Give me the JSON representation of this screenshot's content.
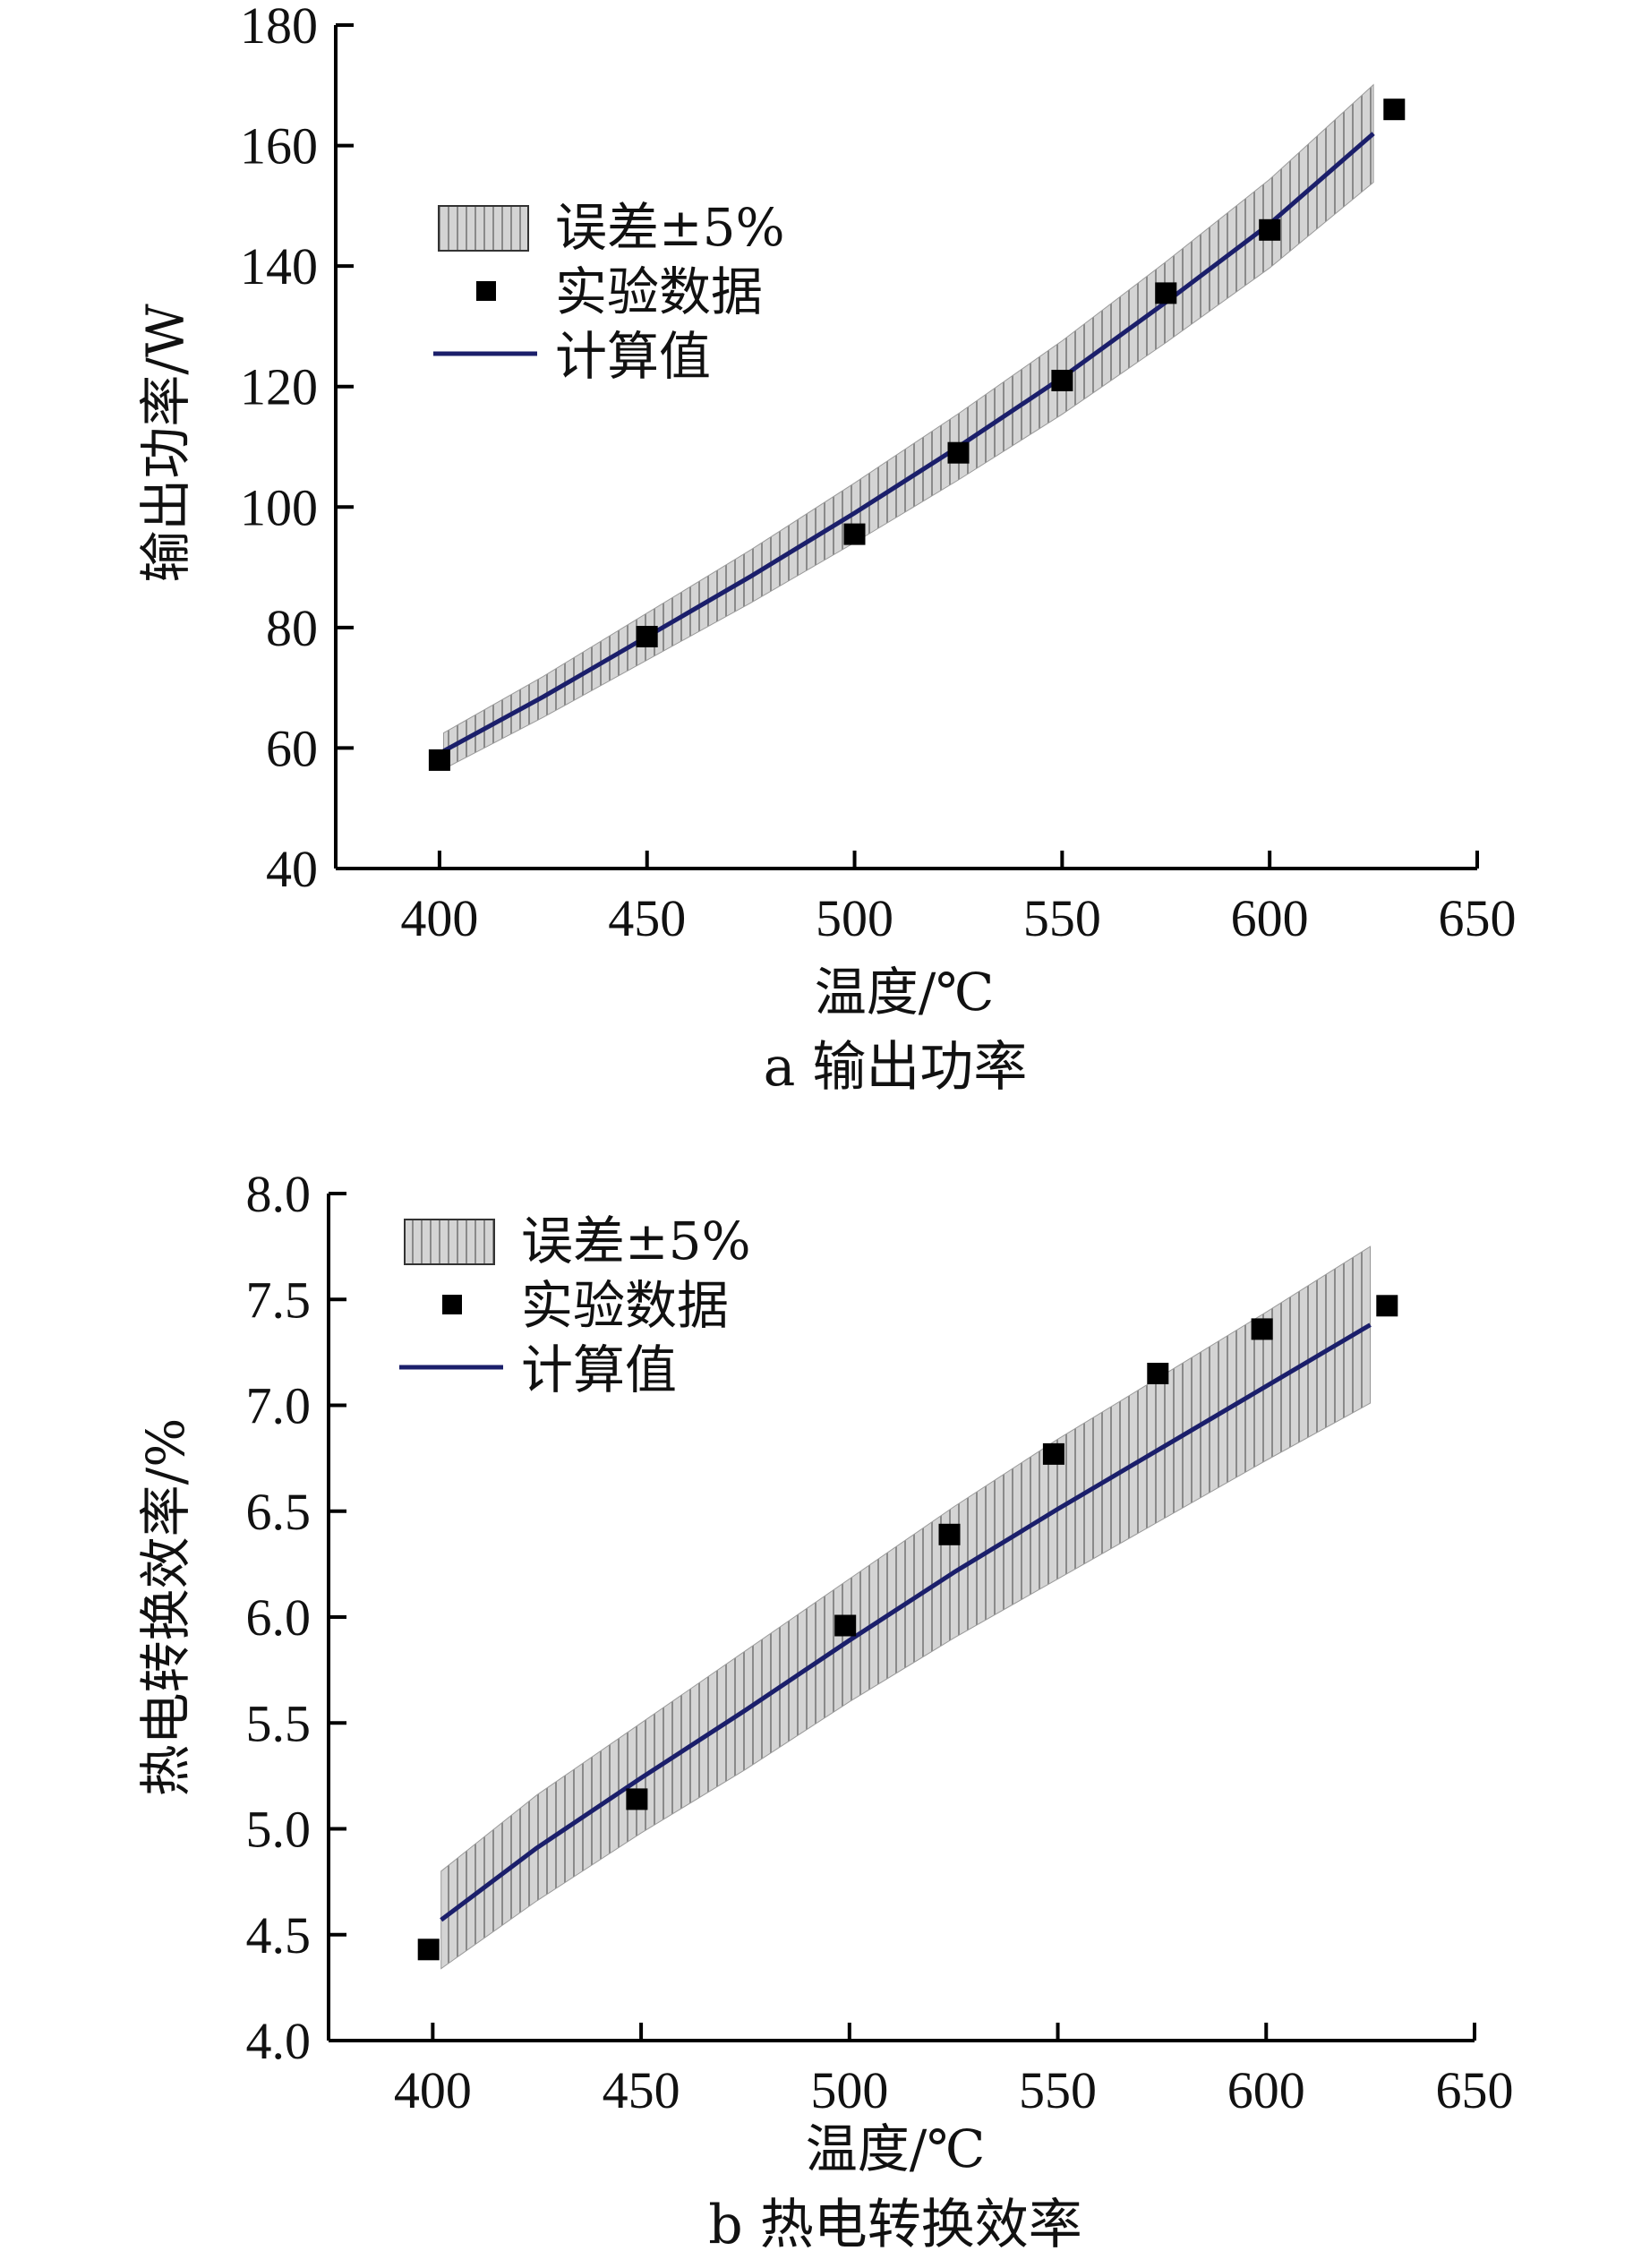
{
  "chart_data": [
    {
      "type": "line",
      "caption": "a 输出功率",
      "title": "",
      "xlabel": "温度/℃",
      "ylabel": "输出功率/W",
      "xlim": [
        375,
        650
      ],
      "ylim": [
        40,
        180
      ],
      "xticks": [
        400,
        450,
        500,
        550,
        600,
        650
      ],
      "yticks": [
        40,
        60,
        80,
        100,
        120,
        140,
        160,
        180
      ],
      "ytick_decimals": 0,
      "grid": false,
      "legend_position": "top-left",
      "legend": [
        "误差±5%",
        "实验数据",
        "计算值"
      ],
      "colors": {
        "line": "#1b1f6b",
        "band": "#d4d4d4",
        "band_hatch": "#8a8a8a",
        "marker": "#000000"
      },
      "series": [
        {
          "name": "计算值",
          "kind": "line",
          "x": [
            401,
            425,
            450,
            475,
            500,
            525,
            550,
            575,
            600,
            625
          ],
          "y": [
            59.5,
            68.5,
            78.5,
            88.5,
            99,
            110,
            121.5,
            134,
            147,
            162
          ]
        },
        {
          "name": "误差±5%",
          "kind": "band",
          "x": [
            401,
            425,
            450,
            475,
            500,
            525,
            550,
            575,
            600,
            625
          ],
          "lower": [
            56.5,
            65.1,
            74.6,
            84.1,
            94.1,
            104.5,
            115.4,
            127.3,
            139.7,
            153.9
          ],
          "upper": [
            62.5,
            71.9,
            82.4,
            92.9,
            104.0,
            115.5,
            127.6,
            140.7,
            154.4,
            170.1
          ]
        },
        {
          "name": "实验数据",
          "kind": "scatter",
          "x": [
            400,
            450,
            500,
            525,
            550,
            575,
            600,
            630
          ],
          "y": [
            58,
            78.5,
            95.5,
            109,
            121,
            135.5,
            146,
            166
          ]
        }
      ]
    },
    {
      "type": "line",
      "caption": "b 热电转换效率",
      "title": "",
      "xlabel": "温度/℃",
      "ylabel": "热电转换效率/%",
      "xlim": [
        375,
        650
      ],
      "ylim": [
        4.0,
        8.0
      ],
      "xticks": [
        400,
        450,
        500,
        550,
        600,
        650
      ],
      "yticks": [
        4.0,
        4.5,
        5.0,
        5.5,
        6.0,
        6.5,
        7.0,
        7.5,
        8.0
      ],
      "ytick_decimals": 1,
      "grid": false,
      "legend_position": "top-left",
      "legend": [
        "误差±5%",
        "实验数据",
        "计算值"
      ],
      "colors": {
        "line": "#1b1f6b",
        "band": "#d4d4d4",
        "band_hatch": "#8a8a8a",
        "marker": "#000000"
      },
      "series": [
        {
          "name": "计算值",
          "kind": "line",
          "x": [
            402,
            425,
            450,
            475,
            500,
            525,
            550,
            575,
            600,
            625
          ],
          "y": [
            4.57,
            4.91,
            5.24,
            5.56,
            5.89,
            6.21,
            6.51,
            6.8,
            7.09,
            7.38
          ]
        },
        {
          "name": "误差±5%",
          "kind": "band",
          "x": [
            402,
            425,
            450,
            475,
            500,
            525,
            550,
            575,
            600,
            625
          ],
          "lower": [
            4.34,
            4.66,
            4.98,
            5.28,
            5.6,
            5.9,
            6.18,
            6.46,
            6.74,
            7.01
          ],
          "upper": [
            4.8,
            5.16,
            5.5,
            5.84,
            6.18,
            6.52,
            6.84,
            7.14,
            7.44,
            7.75
          ]
        },
        {
          "name": "实验数据",
          "kind": "scatter",
          "x": [
            399,
            449,
            499,
            524,
            549,
            574,
            599,
            629
          ],
          "y": [
            4.43,
            5.14,
            5.96,
            6.39,
            6.77,
            7.15,
            7.36,
            7.47
          ]
        }
      ]
    }
  ]
}
